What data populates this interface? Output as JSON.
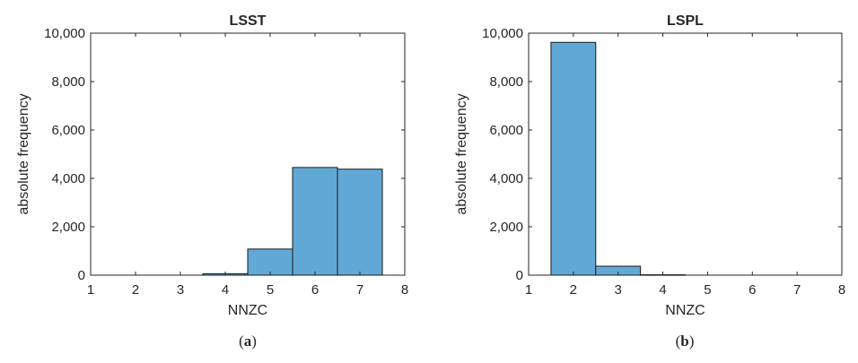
{
  "caption_labels": [
    "a",
    "b"
  ],
  "colors": {
    "bar_fill": "#62A8D7",
    "bar_stroke": "#1a1a1a",
    "axis": "#262626"
  },
  "chart_data": [
    {
      "type": "bar",
      "title": "LSST",
      "xlabel": "NNZC",
      "ylabel": "absolute frequency",
      "xlim": [
        1,
        8
      ],
      "ylim": [
        0,
        10000
      ],
      "xticks": [
        "1",
        "2",
        "3",
        "4",
        "5",
        "6",
        "7",
        "8"
      ],
      "yticks": [
        "0",
        "2,000",
        "4,000",
        "6,000",
        "8,000",
        "10,000"
      ],
      "categories": [
        4,
        5,
        6,
        7
      ],
      "values": [
        60,
        1080,
        4450,
        4380
      ],
      "grid": false,
      "legend": "none"
    },
    {
      "type": "bar",
      "title": "LSPL",
      "xlabel": "NNZC",
      "ylabel": "absolute frequency",
      "xlim": [
        1,
        8
      ],
      "ylim": [
        0,
        10000
      ],
      "xticks": [
        "1",
        "2",
        "3",
        "4",
        "5",
        "6",
        "7",
        "8"
      ],
      "yticks": [
        "0",
        "2,000",
        "4,000",
        "6,000",
        "8,000",
        "10,000"
      ],
      "categories": [
        2,
        3,
        4
      ],
      "values": [
        9620,
        370,
        15
      ],
      "grid": false,
      "legend": "none"
    }
  ]
}
